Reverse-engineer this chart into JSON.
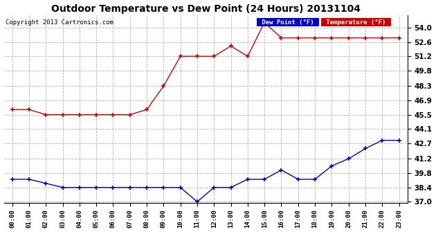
{
  "title": "Outdoor Temperature vs Dew Point (24 Hours) 20131104",
  "copyright": "Copyright 2013 Cartronics.com",
  "background_color": "#ffffff",
  "plot_bg_color": "#ffffff",
  "grid_color": "#b0b0b0",
  "hours": [
    0,
    1,
    2,
    3,
    4,
    5,
    6,
    7,
    8,
    9,
    10,
    11,
    12,
    13,
    14,
    15,
    16,
    17,
    18,
    19,
    20,
    21,
    22,
    23
  ],
  "temperature": [
    46.0,
    46.0,
    45.5,
    45.5,
    45.5,
    45.5,
    45.5,
    45.5,
    46.0,
    48.3,
    51.2,
    51.2,
    51.2,
    52.2,
    51.2,
    54.5,
    53.0,
    53.0,
    53.0,
    53.0,
    53.0,
    53.0,
    53.0,
    53.0
  ],
  "dew_point": [
    39.2,
    39.2,
    38.8,
    38.4,
    38.4,
    38.4,
    38.4,
    38.4,
    38.4,
    38.4,
    38.4,
    37.0,
    38.4,
    38.4,
    39.2,
    39.2,
    40.1,
    39.2,
    39.2,
    40.5,
    41.2,
    42.2,
    43.0,
    43.0
  ],
  "temp_color": "#cc0000",
  "dew_color": "#0000cc",
  "ylim": [
    36.9,
    55.2
  ],
  "yticks": [
    37.0,
    38.4,
    39.8,
    41.2,
    42.7,
    44.1,
    45.5,
    46.9,
    48.3,
    49.8,
    51.2,
    52.6,
    54.0
  ],
  "legend_dew_bg": "#0000cc",
  "legend_temp_bg": "#cc0000"
}
